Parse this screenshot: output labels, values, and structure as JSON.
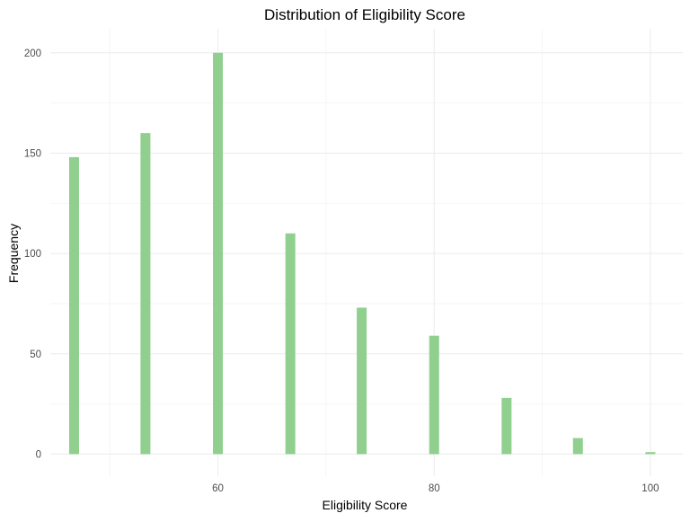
{
  "chart_data": {
    "type": "bar",
    "title": "Distribution of Eligibility Score",
    "xlabel": "Eligibility Score",
    "ylabel": "Frequency",
    "x": [
      46.7,
      53.3,
      60.0,
      66.7,
      73.3,
      80.0,
      86.7,
      93.3,
      100.0
    ],
    "values": [
      148,
      160,
      200,
      110,
      73,
      59,
      28,
      8,
      1
    ],
    "xlim": [
      44.5,
      103
    ],
    "ylim": [
      -11,
      212
    ],
    "xticks": [
      60,
      80,
      100
    ],
    "xtick_labels": [
      "60",
      "80",
      "100"
    ],
    "yticks": [
      0,
      50,
      100,
      150,
      200
    ],
    "ytick_labels": [
      "0",
      "50",
      "100",
      "150",
      "200"
    ],
    "bar_color": "#90cf8e",
    "grid": true,
    "legend": "none"
  }
}
